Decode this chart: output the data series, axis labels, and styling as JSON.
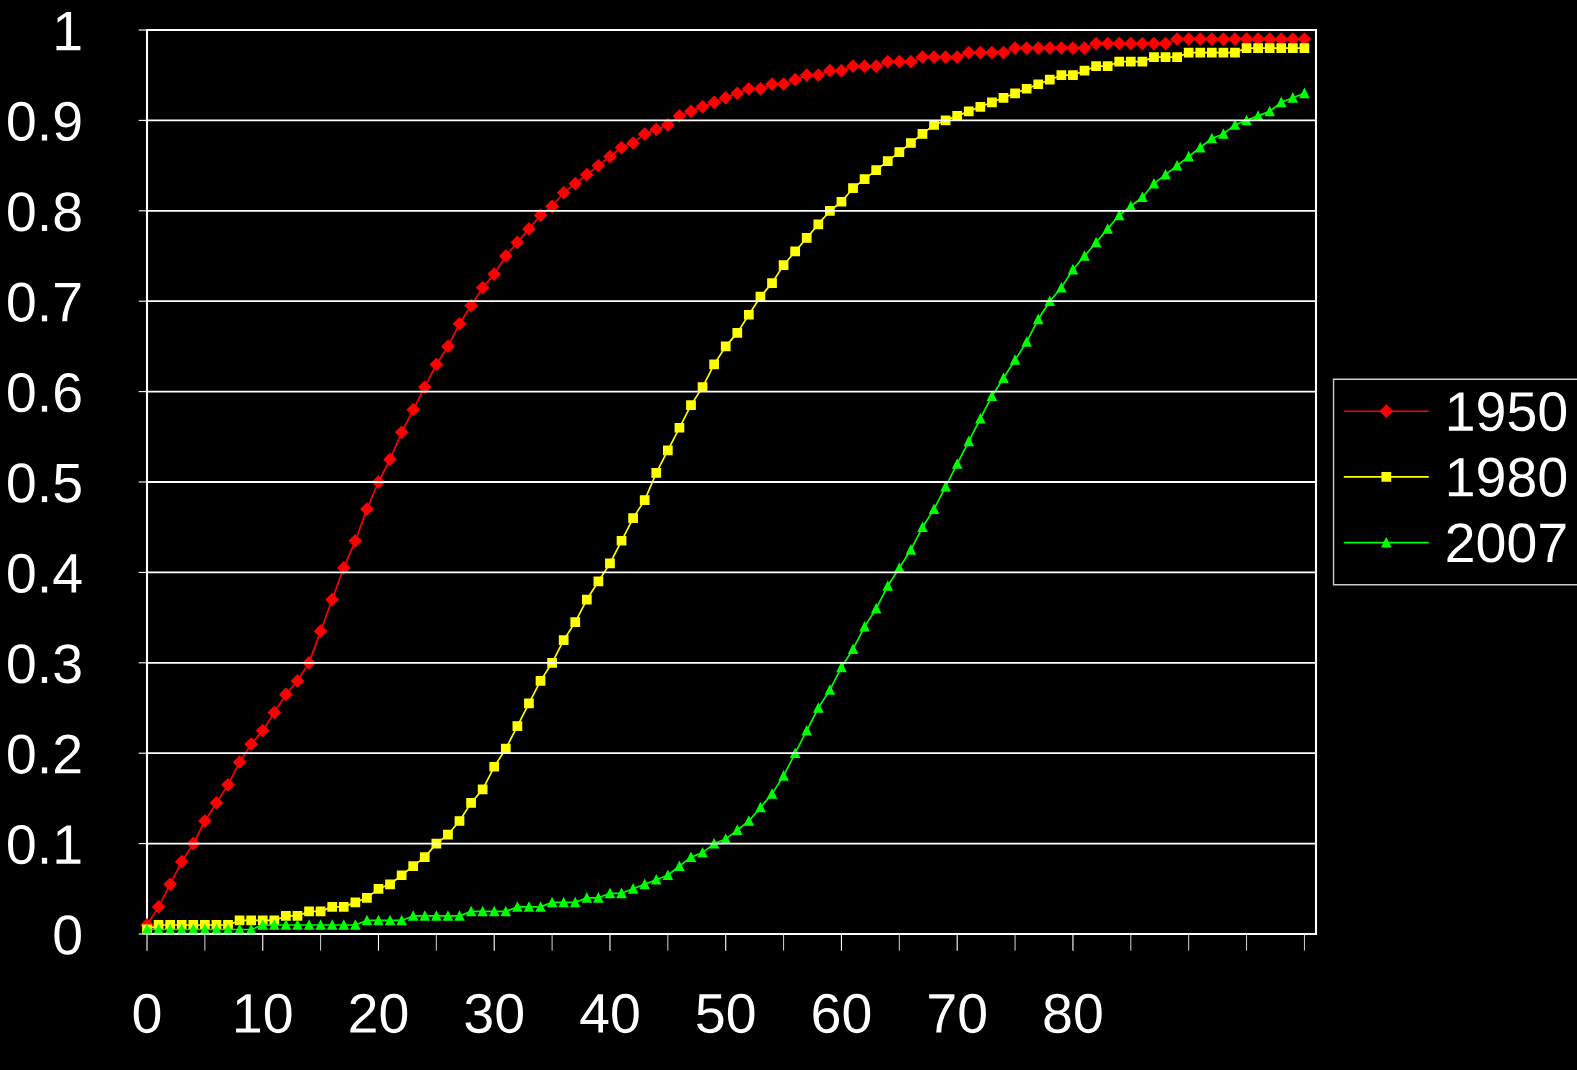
{
  "chart_data": {
    "type": "line",
    "x": [
      0,
      1,
      2,
      3,
      4,
      5,
      6,
      7,
      8,
      9,
      10,
      11,
      12,
      13,
      14,
      15,
      16,
      17,
      18,
      19,
      20,
      21,
      22,
      23,
      24,
      25,
      26,
      27,
      28,
      29,
      30,
      31,
      32,
      33,
      34,
      35,
      36,
      37,
      38,
      39,
      40,
      41,
      42,
      43,
      44,
      45,
      46,
      47,
      48,
      49,
      50,
      51,
      52,
      53,
      54,
      55,
      56,
      57,
      58,
      59,
      60,
      61,
      62,
      63,
      64,
      65,
      66,
      67,
      68,
      69,
      70,
      71,
      72,
      73,
      74,
      75,
      76,
      77,
      78,
      79,
      80,
      81,
      82,
      83,
      84,
      85,
      86,
      87,
      88,
      89,
      90,
      91,
      92,
      93,
      94,
      95,
      96,
      97,
      98,
      99,
      100
    ],
    "series": [
      {
        "name": "1950",
        "color": "#ff0000",
        "marker": "diamond",
        "values": [
          0.01,
          0.03,
          0.055,
          0.08,
          0.1,
          0.125,
          0.145,
          0.165,
          0.19,
          0.21,
          0.225,
          0.245,
          0.265,
          0.28,
          0.3,
          0.335,
          0.37,
          0.405,
          0.435,
          0.47,
          0.5,
          0.525,
          0.555,
          0.58,
          0.605,
          0.63,
          0.65,
          0.675,
          0.695,
          0.715,
          0.73,
          0.75,
          0.765,
          0.78,
          0.795,
          0.805,
          0.82,
          0.83,
          0.84,
          0.85,
          0.86,
          0.87,
          0.875,
          0.885,
          0.89,
          0.895,
          0.905,
          0.91,
          0.915,
          0.92,
          0.925,
          0.93,
          0.935,
          0.935,
          0.94,
          0.94,
          0.945,
          0.95,
          0.95,
          0.955,
          0.955,
          0.96,
          0.96,
          0.96,
          0.965,
          0.965,
          0.965,
          0.97,
          0.97,
          0.97,
          0.97,
          0.975,
          0.975,
          0.975,
          0.975,
          0.98,
          0.98,
          0.98,
          0.98,
          0.98,
          0.98,
          0.98,
          0.985,
          0.985,
          0.985,
          0.985,
          0.985,
          0.985,
          0.985,
          0.99,
          0.99,
          0.99,
          0.99,
          0.99,
          0.99,
          0.99,
          0.99,
          0.99,
          0.99,
          0.99,
          0.99
        ]
      },
      {
        "name": "1980",
        "color": "#ffff00",
        "marker": "square",
        "values": [
          0.005,
          0.01,
          0.01,
          0.01,
          0.01,
          0.01,
          0.01,
          0.01,
          0.015,
          0.015,
          0.015,
          0.015,
          0.02,
          0.02,
          0.025,
          0.025,
          0.03,
          0.03,
          0.035,
          0.04,
          0.05,
          0.055,
          0.065,
          0.075,
          0.085,
          0.1,
          0.11,
          0.125,
          0.145,
          0.16,
          0.185,
          0.205,
          0.23,
          0.255,
          0.28,
          0.3,
          0.325,
          0.345,
          0.37,
          0.39,
          0.41,
          0.435,
          0.46,
          0.48,
          0.51,
          0.535,
          0.56,
          0.585,
          0.605,
          0.63,
          0.65,
          0.665,
          0.685,
          0.705,
          0.72,
          0.74,
          0.755,
          0.77,
          0.785,
          0.8,
          0.81,
          0.825,
          0.835,
          0.845,
          0.855,
          0.865,
          0.875,
          0.885,
          0.895,
          0.9,
          0.905,
          0.91,
          0.915,
          0.92,
          0.925,
          0.93,
          0.935,
          0.94,
          0.945,
          0.95,
          0.95,
          0.955,
          0.96,
          0.96,
          0.965,
          0.965,
          0.965,
          0.97,
          0.97,
          0.97,
          0.975,
          0.975,
          0.975,
          0.975,
          0.975,
          0.98,
          0.98,
          0.98,
          0.98,
          0.98,
          0.98
        ]
      },
      {
        "name": "2007",
        "color": "#00ff00",
        "marker": "triangle",
        "values": [
          0.005,
          0.005,
          0.005,
          0.005,
          0.005,
          0.005,
          0.005,
          0.005,
          0.005,
          0.005,
          0.01,
          0.01,
          0.01,
          0.01,
          0.01,
          0.01,
          0.01,
          0.01,
          0.01,
          0.015,
          0.015,
          0.015,
          0.015,
          0.02,
          0.02,
          0.02,
          0.02,
          0.02,
          0.025,
          0.025,
          0.025,
          0.025,
          0.03,
          0.03,
          0.03,
          0.035,
          0.035,
          0.035,
          0.04,
          0.04,
          0.045,
          0.045,
          0.05,
          0.055,
          0.06,
          0.065,
          0.075,
          0.085,
          0.09,
          0.1,
          0.105,
          0.115,
          0.125,
          0.14,
          0.155,
          0.175,
          0.2,
          0.225,
          0.25,
          0.27,
          0.295,
          0.315,
          0.34,
          0.36,
          0.385,
          0.405,
          0.425,
          0.45,
          0.47,
          0.495,
          0.52,
          0.545,
          0.57,
          0.595,
          0.615,
          0.635,
          0.655,
          0.68,
          0.7,
          0.715,
          0.735,
          0.75,
          0.765,
          0.78,
          0.795,
          0.805,
          0.815,
          0.83,
          0.84,
          0.85,
          0.86,
          0.87,
          0.88,
          0.885,
          0.895,
          0.9,
          0.905,
          0.91,
          0.92,
          0.925,
          0.93
        ]
      }
    ],
    "xlim": [
      0,
      101
    ],
    "xticks": [
      0,
      10,
      20,
      30,
      40,
      50,
      60,
      70,
      80
    ],
    "ylim": [
      0,
      1
    ],
    "yticks": [
      0,
      0.1,
      0.2,
      0.3,
      0.4,
      0.5,
      0.6,
      0.7,
      0.8,
      0.9,
      1
    ],
    "grid": "y",
    "legend": "right",
    "line_style": "solid"
  }
}
